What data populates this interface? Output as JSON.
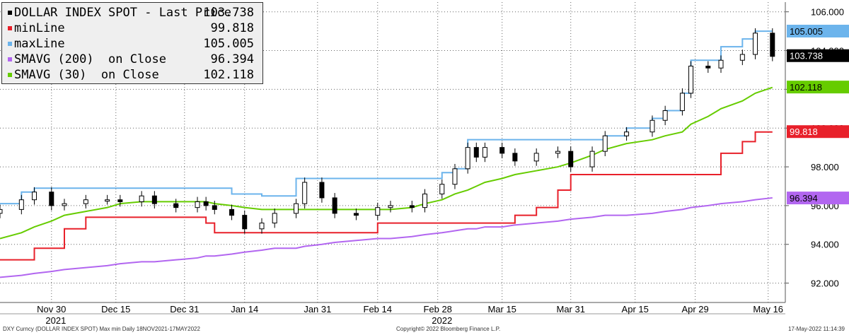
{
  "chart_data": {
    "type": "line",
    "title": "",
    "ylim": [
      91,
      106.5
    ],
    "y_ticks": [
      "106.000",
      "104.000",
      "102.000",
      "100.000",
      "98.000",
      "96.000",
      "94.000",
      "92.000"
    ],
    "y_tick_values": [
      106,
      104,
      102,
      100,
      98,
      96,
      94,
      92
    ],
    "x_tick_labels": [
      "Nov 30",
      "Dec 15",
      "Dec 31",
      "Jan 14",
      "Jan 31",
      "Feb 14",
      "Feb 28",
      "Mar 15",
      "Mar 31",
      "Apr 15",
      "Apr 29",
      "May 16"
    ],
    "x_tick_dates": [
      "2021-11-30",
      "2021-12-15",
      "2021-12-31",
      "2022-01-14",
      "2022-01-31",
      "2022-02-14",
      "2022-02-28",
      "2022-03-15",
      "2022-03-31",
      "2022-04-15",
      "2022-04-29",
      "2022-05-16"
    ],
    "year_labels": [
      {
        "label": "2021",
        "date": "2021-12-01"
      },
      {
        "label": "2022",
        "date": "2022-03-01"
      }
    ],
    "grid": true,
    "legend_position": "top-left",
    "legend": [
      {
        "label": "DOLLAR INDEX SPOT - Last Price",
        "value": "103.738",
        "color": "#000000"
      },
      {
        "label": "minLine",
        "value": "99.818",
        "color": "#e8202a"
      },
      {
        "label": "maxLine",
        "value": "105.005",
        "color": "#6cb4ec"
      },
      {
        "label": "SMAVG (200)  on Close",
        "value": "96.394",
        "color": "#b266f0"
      },
      {
        "label": "SMAVG (30)  on Close",
        "value": "102.118",
        "color": "#66cc00"
      }
    ],
    "last_value_tags": [
      {
        "value": "105.005",
        "y": 105.005,
        "bg": "#6cb4ec",
        "fg": "#000000"
      },
      {
        "value": "103.738",
        "y": 103.738,
        "bg": "#000000",
        "fg": "#ffffff"
      },
      {
        "value": "102.118",
        "y": 102.118,
        "bg": "#66cc00",
        "fg": "#000000"
      },
      {
        "value": "99.818",
        "y": 99.818,
        "bg": "#e8202a",
        "fg": "#ffffff"
      },
      {
        "value": "96.394",
        "y": 96.394,
        "bg": "#b266f0",
        "fg": "#000000"
      }
    ],
    "x_range": [
      "2021-11-18",
      "2022-05-20"
    ],
    "x": [
      "2021-11-18",
      "2021-11-23",
      "2021-11-26",
      "2021-11-30",
      "2021-12-03",
      "2021-12-08",
      "2021-12-13",
      "2021-12-16",
      "2021-12-21",
      "2021-12-24",
      "2021-12-29",
      "2022-01-03",
      "2022-01-05",
      "2022-01-07",
      "2022-01-11",
      "2022-01-14",
      "2022-01-18",
      "2022-01-21",
      "2022-01-26",
      "2022-01-28",
      "2022-02-01",
      "2022-02-04",
      "2022-02-09",
      "2022-02-14",
      "2022-02-17",
      "2022-02-22",
      "2022-02-25",
      "2022-03-01",
      "2022-03-04",
      "2022-03-07",
      "2022-03-09",
      "2022-03-11",
      "2022-03-15",
      "2022-03-18",
      "2022-03-23",
      "2022-03-28",
      "2022-03-31",
      "2022-04-05",
      "2022-04-08",
      "2022-04-13",
      "2022-04-19",
      "2022-04-22",
      "2022-04-26",
      "2022-04-28",
      "2022-05-02",
      "2022-05-05",
      "2022-05-10",
      "2022-05-13",
      "2022-05-17"
    ],
    "series": [
      {
        "name": "DOLLAR INDEX SPOT - Last Price",
        "color": "#000000",
        "values": [
          95.8,
          96.3,
          96.7,
          96.0,
          96.1,
          96.3,
          96.3,
          96.2,
          96.5,
          96.1,
          95.9,
          96.2,
          96.0,
          95.8,
          95.5,
          94.8,
          95.1,
          95.6,
          96.1,
          97.2,
          96.4,
          95.6,
          95.5,
          95.9,
          96.0,
          95.9,
          96.6,
          97.1,
          97.9,
          99.0,
          98.5,
          99.0,
          98.7,
          98.3,
          98.7,
          98.8,
          98.0,
          98.8,
          99.6,
          99.8,
          100.4,
          100.9,
          101.8,
          103.2,
          103.1,
          103.5,
          103.8,
          104.9,
          103.7
        ]
      },
      {
        "name": "minLine",
        "color": "#e8202a",
        "values": [
          93.2,
          93.2,
          93.8,
          93.8,
          94.8,
          95.4,
          95.4,
          95.4,
          95.4,
          95.4,
          95.4,
          95.4,
          95.1,
          94.6,
          94.6,
          94.6,
          94.6,
          94.6,
          94.6,
          94.6,
          94.6,
          94.6,
          94.6,
          95.1,
          95.1,
          95.1,
          95.1,
          95.1,
          95.1,
          95.1,
          95.1,
          95.1,
          95.1,
          95.5,
          95.9,
          96.8,
          97.6,
          97.6,
          97.6,
          97.6,
          97.6,
          97.6,
          97.6,
          97.6,
          97.6,
          98.7,
          99.3,
          99.8,
          99.8
        ]
      },
      {
        "name": "maxLine",
        "color": "#6cb4ec",
        "values": [
          96.1,
          96.7,
          96.9,
          96.9,
          96.9,
          96.9,
          96.9,
          96.9,
          96.9,
          96.9,
          96.9,
          96.9,
          96.9,
          96.9,
          96.6,
          96.6,
          96.5,
          96.5,
          97.4,
          97.4,
          97.4,
          97.4,
          97.4,
          97.4,
          97.4,
          97.4,
          97.4,
          97.7,
          97.9,
          99.4,
          99.4,
          99.4,
          99.4,
          99.4,
          99.4,
          99.4,
          99.4,
          99.4,
          99.6,
          100.0,
          100.5,
          100.9,
          101.8,
          103.5,
          103.5,
          104.2,
          104.6,
          105.0,
          105.0
        ]
      },
      {
        "name": "SMAVG (200)  on Close",
        "color": "#b266f0",
        "values": [
          92.3,
          92.4,
          92.5,
          92.6,
          92.7,
          92.8,
          92.9,
          93.0,
          93.1,
          93.1,
          93.2,
          93.3,
          93.4,
          93.4,
          93.5,
          93.6,
          93.7,
          93.8,
          93.8,
          93.9,
          94.0,
          94.1,
          94.2,
          94.3,
          94.3,
          94.4,
          94.5,
          94.6,
          94.7,
          94.8,
          94.8,
          94.9,
          94.9,
          95.0,
          95.1,
          95.2,
          95.3,
          95.4,
          95.5,
          95.5,
          95.6,
          95.7,
          95.8,
          95.9,
          96.0,
          96.1,
          96.2,
          96.3,
          96.4
        ]
      },
      {
        "name": "SMAVG (30)  on Close",
        "color": "#66cc00",
        "values": [
          94.3,
          94.6,
          94.9,
          95.2,
          95.5,
          95.7,
          95.9,
          96.1,
          96.2,
          96.2,
          96.2,
          96.2,
          96.2,
          96.1,
          96.0,
          95.9,
          95.8,
          95.8,
          95.8,
          95.8,
          95.8,
          95.8,
          95.8,
          95.8,
          95.8,
          95.9,
          96.1,
          96.3,
          96.6,
          96.8,
          97.0,
          97.2,
          97.4,
          97.6,
          97.8,
          98.0,
          98.2,
          98.6,
          98.9,
          99.2,
          99.4,
          99.6,
          99.8,
          100.2,
          100.6,
          101.0,
          101.4,
          101.8,
          102.1
        ]
      }
    ]
  },
  "footer": {
    "left": "DXY Curncy (DOLLAR INDEX SPOT) Max min  Daily 18NOV2021-17MAY2022",
    "center": "Copyright© 2022 Bloomberg Finance L.P.",
    "right": "17-May-2022 11:14:39"
  }
}
